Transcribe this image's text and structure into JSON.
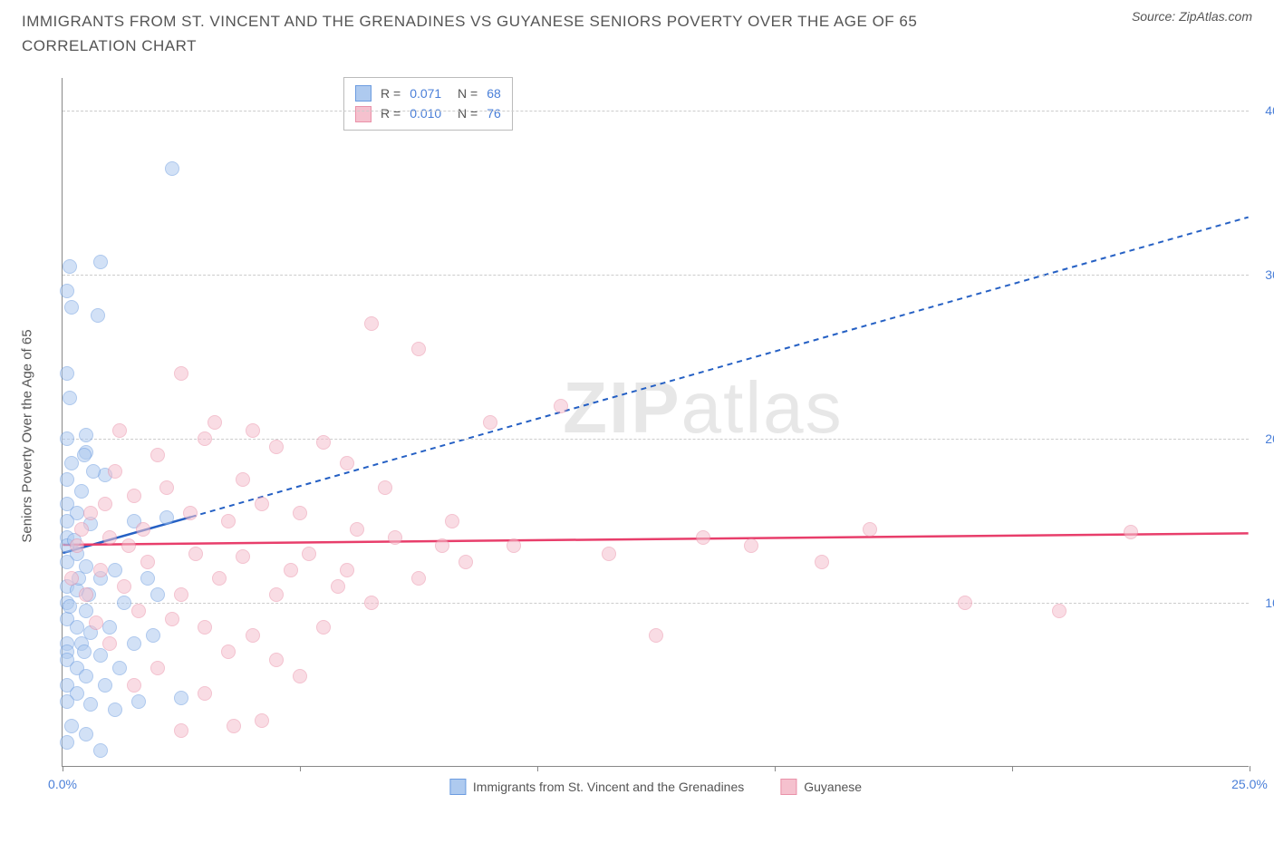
{
  "title": "IMMIGRANTS FROM ST. VINCENT AND THE GRENADINES VS GUYANESE SENIORS POVERTY OVER THE AGE OF 65 CORRELATION CHART",
  "source": "Source: ZipAtlas.com",
  "watermark_a": "ZIP",
  "watermark_b": "atlas",
  "chart": {
    "type": "scatter",
    "xlim": [
      0,
      25
    ],
    "ylim": [
      0,
      42
    ],
    "x_ticks": [
      0,
      5,
      10,
      15,
      20,
      25
    ],
    "x_tick_labels": [
      "0.0%",
      "",
      "",
      "",
      "",
      "25.0%"
    ],
    "y_ticks": [
      10,
      20,
      30,
      40
    ],
    "y_tick_labels": [
      "10.0%",
      "20.0%",
      "30.0%",
      "40.0%"
    ],
    "y_title": "Seniors Poverty Over the Age of 65",
    "grid_color": "#cccccc",
    "axis_tick_color": "#4a7fd8",
    "background_color": "#ffffff",
    "point_radius": 8,
    "point_opacity": 0.55,
    "series": [
      {
        "name": "Immigrants from St. Vincent and the Grenadines",
        "fill": "#aecaef",
        "stroke": "#6c9ce0",
        "trend_color": "#2560c4",
        "trend": {
          "x1": 0,
          "y1": 13.0,
          "x2_solid": 2.7,
          "y2_solid": 15.2,
          "x2": 25,
          "y2": 33.5
        },
        "stats": {
          "R": "0.071",
          "N": "68"
        },
        "points": [
          [
            0.15,
            30.5
          ],
          [
            0.8,
            30.8
          ],
          [
            2.3,
            36.5
          ],
          [
            0.1,
            29.0
          ],
          [
            0.75,
            27.5
          ],
          [
            0.1,
            24.0
          ],
          [
            0.15,
            22.5
          ],
          [
            0.5,
            20.2
          ],
          [
            0.1,
            20.0
          ],
          [
            0.5,
            19.2
          ],
          [
            0.9,
            17.8
          ],
          [
            0.1,
            17.5
          ],
          [
            0.4,
            16.8
          ],
          [
            0.1,
            16.0
          ],
          [
            0.3,
            15.5
          ],
          [
            0.1,
            15.0
          ],
          [
            0.6,
            14.8
          ],
          [
            0.1,
            14.0
          ],
          [
            0.1,
            13.5
          ],
          [
            0.3,
            13.0
          ],
          [
            0.1,
            12.5
          ],
          [
            0.5,
            12.2
          ],
          [
            0.8,
            11.5
          ],
          [
            0.1,
            11.0
          ],
          [
            0.3,
            10.8
          ],
          [
            0.1,
            10.0
          ],
          [
            0.5,
            9.5
          ],
          [
            0.1,
            9.0
          ],
          [
            0.3,
            8.5
          ],
          [
            0.6,
            8.2
          ],
          [
            0.1,
            7.5
          ],
          [
            0.4,
            7.5
          ],
          [
            0.1,
            7.0
          ],
          [
            0.8,
            6.8
          ],
          [
            0.1,
            6.5
          ],
          [
            0.3,
            6.0
          ],
          [
            0.5,
            5.5
          ],
          [
            0.1,
            5.0
          ],
          [
            0.9,
            5.0
          ],
          [
            0.3,
            4.5
          ],
          [
            0.1,
            4.0
          ],
          [
            0.6,
            3.8
          ],
          [
            1.1,
            3.5
          ],
          [
            0.2,
            2.5
          ],
          [
            0.5,
            2.0
          ],
          [
            0.1,
            1.5
          ],
          [
            0.8,
            1.0
          ],
          [
            1.5,
            15.0
          ],
          [
            1.1,
            12.0
          ],
          [
            1.8,
            11.5
          ],
          [
            1.3,
            10.0
          ],
          [
            1.0,
            8.5
          ],
          [
            1.5,
            7.5
          ],
          [
            1.2,
            6.0
          ],
          [
            1.6,
            4.0
          ],
          [
            2.0,
            10.5
          ],
          [
            2.2,
            15.2
          ],
          [
            1.9,
            8.0
          ],
          [
            2.5,
            4.2
          ],
          [
            0.2,
            28.0
          ],
          [
            0.45,
            19.0
          ],
          [
            0.2,
            18.5
          ],
          [
            0.65,
            18.0
          ],
          [
            0.25,
            13.8
          ],
          [
            0.15,
            9.8
          ],
          [
            0.35,
            11.5
          ],
          [
            0.55,
            10.5
          ],
          [
            0.45,
            7.0
          ]
        ]
      },
      {
        "name": "Guyanese",
        "fill": "#f5c1ce",
        "stroke": "#ea91a9",
        "trend_color": "#e83e6b",
        "trend": {
          "x1": 0,
          "y1": 13.5,
          "x2_solid": 25,
          "y2_solid": 14.2,
          "x2": 25,
          "y2": 14.2
        },
        "stats": {
          "R": "0.010",
          "N": "76"
        },
        "points": [
          [
            6.5,
            27.0
          ],
          [
            7.5,
            25.5
          ],
          [
            2.5,
            24.0
          ],
          [
            3.2,
            21.0
          ],
          [
            1.2,
            20.5
          ],
          [
            3.0,
            20.0
          ],
          [
            4.0,
            20.5
          ],
          [
            2.0,
            19.0
          ],
          [
            4.5,
            19.5
          ],
          [
            5.5,
            19.8
          ],
          [
            6.0,
            18.5
          ],
          [
            3.8,
            17.5
          ],
          [
            6.8,
            17.0
          ],
          [
            2.2,
            17.0
          ],
          [
            1.5,
            16.5
          ],
          [
            4.2,
            16.0
          ],
          [
            5.0,
            15.5
          ],
          [
            3.5,
            15.0
          ],
          [
            6.2,
            14.5
          ],
          [
            7.0,
            14.0
          ],
          [
            8.0,
            13.5
          ],
          [
            2.8,
            13.0
          ],
          [
            1.8,
            12.5
          ],
          [
            4.8,
            12.0
          ],
          [
            3.3,
            11.5
          ],
          [
            5.8,
            11.0
          ],
          [
            2.5,
            10.5
          ],
          [
            6.5,
            10.0
          ],
          [
            8.5,
            12.5
          ],
          [
            9.5,
            13.5
          ],
          [
            10.5,
            22.0
          ],
          [
            11.5,
            13.0
          ],
          [
            12.5,
            8.0
          ],
          [
            13.5,
            14.0
          ],
          [
            14.5,
            13.5
          ],
          [
            16.0,
            12.5
          ],
          [
            17.0,
            14.5
          ],
          [
            19.0,
            10.0
          ],
          [
            21.0,
            9.5
          ],
          [
            22.5,
            14.3
          ],
          [
            1.0,
            14.0
          ],
          [
            0.8,
            12.0
          ],
          [
            1.3,
            11.0
          ],
          [
            0.5,
            10.5
          ],
          [
            1.6,
            9.5
          ],
          [
            2.3,
            9.0
          ],
          [
            3.0,
            8.5
          ],
          [
            4.0,
            8.0
          ],
          [
            3.5,
            7.0
          ],
          [
            4.5,
            6.5
          ],
          [
            2.0,
            6.0
          ],
          [
            5.0,
            5.5
          ],
          [
            3.0,
            4.5
          ],
          [
            4.2,
            2.8
          ],
          [
            3.6,
            2.5
          ],
          [
            2.5,
            2.2
          ],
          [
            1.0,
            7.5
          ],
          [
            1.5,
            5.0
          ],
          [
            0.7,
            8.8
          ],
          [
            0.3,
            13.5
          ],
          [
            0.4,
            14.5
          ],
          [
            0.2,
            11.5
          ],
          [
            0.6,
            15.5
          ],
          [
            0.9,
            16.0
          ],
          [
            1.1,
            18.0
          ],
          [
            1.4,
            13.5
          ],
          [
            1.7,
            14.5
          ],
          [
            7.5,
            11.5
          ],
          [
            9.0,
            21.0
          ],
          [
            5.2,
            13.0
          ],
          [
            6.0,
            12.0
          ],
          [
            4.5,
            10.5
          ],
          [
            3.8,
            12.8
          ],
          [
            2.7,
            15.5
          ],
          [
            5.5,
            8.5
          ],
          [
            8.2,
            15.0
          ]
        ]
      }
    ]
  }
}
